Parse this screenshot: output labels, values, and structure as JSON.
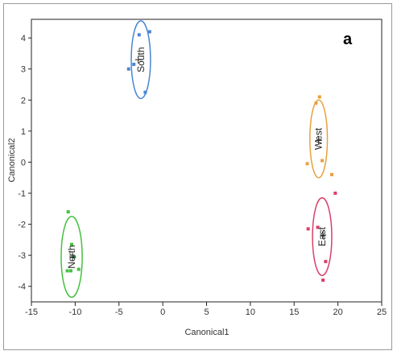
{
  "panel_label": "a",
  "chart_data": {
    "type": "scatter",
    "title": "",
    "xlabel": "Canonical1",
    "ylabel": "Canonical2",
    "xlim": [
      -15,
      25
    ],
    "ylim": [
      -4.5,
      4.6
    ],
    "xticks": [
      -15,
      -10,
      -5,
      0,
      5,
      10,
      15,
      20,
      25
    ],
    "yticks": [
      -4,
      -3,
      -2,
      -1,
      0,
      1,
      2,
      3,
      4
    ],
    "grid": false,
    "series": [
      {
        "name": "South",
        "color": "#4a86d4",
        "mean": [
          -2.8,
          3.3
        ],
        "ellipse": {
          "center": [
            -2.5,
            3.3
          ],
          "rx": 1.1,
          "ry": 1.25
        },
        "points": [
          [
            -1.5,
            4.2
          ],
          [
            -2.7,
            4.1
          ],
          [
            -3.3,
            3.15
          ],
          [
            -3.9,
            3.0
          ],
          [
            -2.0,
            2.25
          ]
        ]
      },
      {
        "name": "West",
        "color": "#e8a040",
        "mean": [
          17.8,
          0.7
        ],
        "ellipse": {
          "center": [
            17.8,
            0.75
          ],
          "rx": 1.0,
          "ry": 1.25
        },
        "points": [
          [
            17.9,
            2.1
          ],
          [
            17.5,
            1.9
          ],
          [
            18.2,
            0.05
          ],
          [
            16.5,
            -0.05
          ],
          [
            19.3,
            -0.4
          ]
        ]
      },
      {
        "name": "East",
        "color": "#d8406a",
        "mean": [
          18.3,
          -2.35
        ],
        "ellipse": {
          "center": [
            18.2,
            -2.4
          ],
          "rx": 1.1,
          "ry": 1.25
        },
        "points": [
          [
            19.7,
            -1.0
          ],
          [
            16.6,
            -2.15
          ],
          [
            18.6,
            -3.2
          ],
          [
            18.3,
            -3.8
          ],
          [
            17.7,
            -2.1
          ]
        ]
      },
      {
        "name": "North",
        "color": "#44c040",
        "mean": [
          -10.3,
          -3.05
        ],
        "ellipse": {
          "center": [
            -10.4,
            -3.05
          ],
          "rx": 1.2,
          "ry": 1.3
        },
        "points": [
          [
            -10.8,
            -1.6
          ],
          [
            -10.4,
            -2.65
          ],
          [
            -10.1,
            -3.05
          ],
          [
            -10.9,
            -3.5
          ],
          [
            -10.5,
            -3.5
          ],
          [
            -9.6,
            -3.45
          ]
        ]
      }
    ]
  }
}
